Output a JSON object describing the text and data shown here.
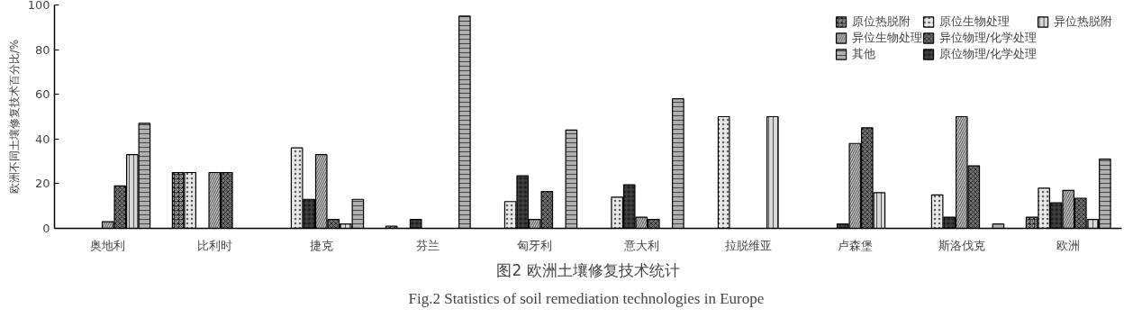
{
  "chart_data": {
    "type": "bar",
    "title": "图2 欧洲土壤修复技术统计",
    "subtitle": "Fig.2  Statistics of soil remediation technologies in Europe",
    "ylabel": "欧洲不同土壤修复技术百分比/%",
    "categories": [
      "奥地利",
      "比利时",
      "捷克",
      "芬兰",
      "匈牙利",
      "意大利",
      "拉脱维亚",
      "卢森堡",
      "斯洛伐克",
      "欧洲"
    ],
    "series": [
      {
        "name": "原位热脱附",
        "color": "#a0a0a0",
        "values": [
          null,
          25,
          null,
          1,
          null,
          null,
          null,
          null,
          null,
          5
        ]
      },
      {
        "name": "原位生物处理",
        "color": "#e8e8e8",
        "values": [
          null,
          25,
          36,
          null,
          12,
          14,
          50,
          null,
          15,
          18
        ]
      },
      {
        "name": "原位物理/化学处理",
        "color": "#404040",
        "values": [
          null,
          null,
          13,
          4,
          23.5,
          19.5,
          null,
          2,
          5,
          11.5
        ]
      },
      {
        "name": "异位生物处理",
        "color": "#c4c4c4",
        "values": [
          3,
          25,
          33,
          null,
          4,
          5,
          null,
          38,
          50,
          17
        ]
      },
      {
        "name": "异位物理/化学处理",
        "color": "#707070",
        "values": [
          19,
          25,
          4,
          null,
          16.5,
          4,
          null,
          45,
          28,
          13.5
        ]
      },
      {
        "name": "异位热脱附",
        "color": "#d8d8d8",
        "values": [
          33,
          null,
          2,
          null,
          null,
          null,
          50,
          16,
          null,
          4
        ]
      },
      {
        "name": "其他",
        "color": "#b0b0b0",
        "values": [
          47,
          null,
          13,
          95,
          44,
          58,
          null,
          null,
          2,
          31
        ]
      }
    ],
    "ylim": [
      0,
      100
    ],
    "yticks": [
      0,
      20,
      40,
      60,
      80,
      100
    ],
    "grid": false,
    "legend": "top right"
  }
}
